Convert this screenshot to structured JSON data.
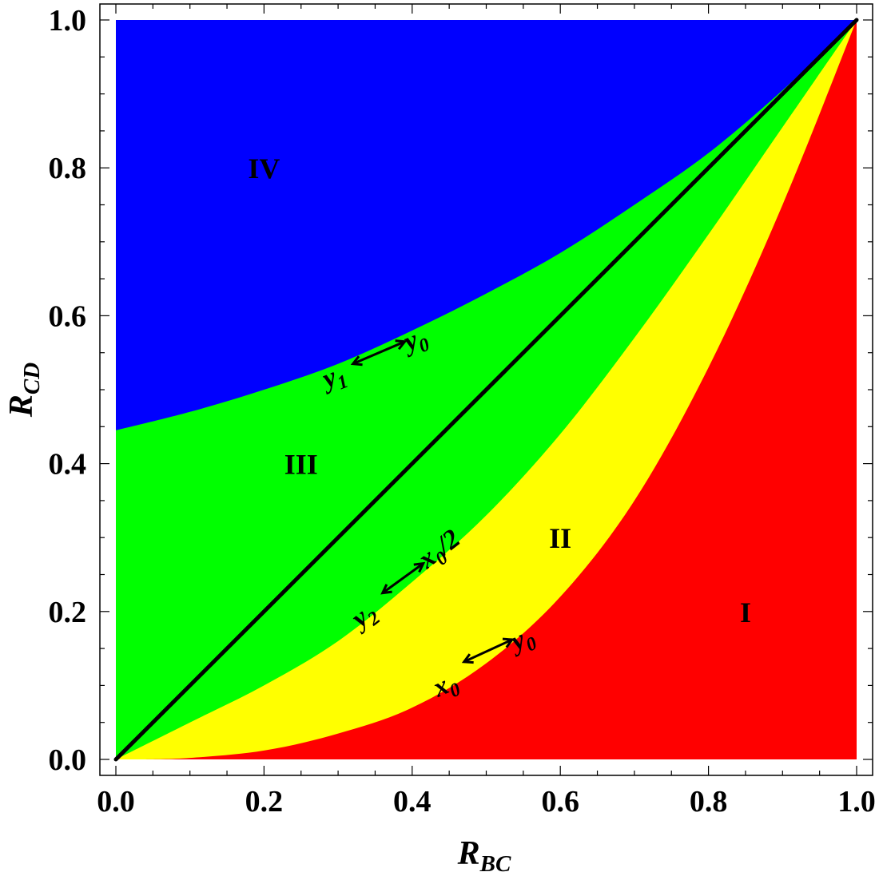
{
  "chart_data": {
    "type": "area",
    "xlabel": {
      "main": "R",
      "sub": "BC"
    },
    "ylabel": {
      "main": "R",
      "sub": "CD"
    },
    "xlim": [
      0,
      1
    ],
    "ylim": [
      0,
      1
    ],
    "x_ticks": [
      "0.0",
      "0.2",
      "0.4",
      "0.6",
      "0.8",
      "1.0"
    ],
    "y_ticks": [
      "0.0",
      "0.2",
      "0.4",
      "0.6",
      "0.8",
      "1.0"
    ],
    "x_tick_values": [
      0,
      0.2,
      0.4,
      0.6,
      0.8,
      1.0
    ],
    "y_tick_values": [
      0,
      0.2,
      0.4,
      0.6,
      0.8,
      1.0
    ],
    "grid": false,
    "colors": {
      "region_I": "#ff0000",
      "region_II": "#ffff00",
      "region_III": "#00ff00",
      "region_IV": "#0000ff",
      "diagonal": "#000000"
    },
    "curves": {
      "blue_green_boundary": {
        "x": [
          0,
          0.1,
          0.2,
          0.3,
          0.4,
          0.5,
          0.6,
          0.7,
          0.8,
          0.9,
          1.0
        ],
        "y": [
          0.445,
          0.47,
          0.5,
          0.535,
          0.58,
          0.63,
          0.685,
          0.75,
          0.82,
          0.905,
          1.0
        ]
      },
      "green_yellow_boundary": {
        "x": [
          0,
          0.1,
          0.2,
          0.3,
          0.4,
          0.5,
          0.6,
          0.7,
          0.8,
          0.9,
          1.0
        ],
        "y": [
          0,
          0.05,
          0.1,
          0.16,
          0.24,
          0.33,
          0.44,
          0.57,
          0.71,
          0.855,
          1.0
        ]
      },
      "yellow_red_boundary": {
        "x": [
          0.04,
          0.1,
          0.2,
          0.3,
          0.4,
          0.5,
          0.6,
          0.7,
          0.8,
          0.9,
          1.0
        ],
        "y": [
          0,
          0.002,
          0.012,
          0.035,
          0.07,
          0.13,
          0.22,
          0.35,
          0.53,
          0.75,
          1.0
        ]
      },
      "diagonal": {
        "x": [
          0,
          1
        ],
        "y": [
          0,
          1
        ]
      }
    },
    "regions": [
      {
        "label": "I",
        "x": 0.85,
        "y": 0.2
      },
      {
        "label": "II",
        "x": 0.6,
        "y": 0.3
      },
      {
        "label": "III",
        "x": 0.25,
        "y": 0.4
      },
      {
        "label": "IV",
        "x": 0.2,
        "y": 0.8
      }
    ],
    "boundary_annotations": [
      {
        "left": {
          "main": "y",
          "sub": "1"
        },
        "right": {
          "main": "y",
          "sub": "0"
        },
        "x1": 0.32,
        "y1": 0.535,
        "x2": 0.39,
        "y2": 0.565,
        "lx": 0.285,
        "ly": 0.515,
        "rx": 0.395,
        "ry": 0.565,
        "rot": -22
      },
      {
        "left": {
          "main": "y",
          "sub": "2"
        },
        "right": {
          "main": "x",
          "sub": "0",
          "suffix": "/2"
        },
        "x1": 0.36,
        "y1": 0.225,
        "x2": 0.415,
        "y2": 0.265,
        "lx": 0.33,
        "ly": 0.19,
        "rx": 0.42,
        "ry": 0.27,
        "rot": -38
      },
      {
        "left": {
          "main": "x",
          "sub": "0"
        },
        "right": {
          "main": "y",
          "sub": "0"
        },
        "x1": 0.47,
        "y1": 0.132,
        "x2": 0.535,
        "y2": 0.162,
        "lx": 0.435,
        "ly": 0.097,
        "rx": 0.54,
        "ry": 0.16,
        "rot": -24
      }
    ]
  }
}
